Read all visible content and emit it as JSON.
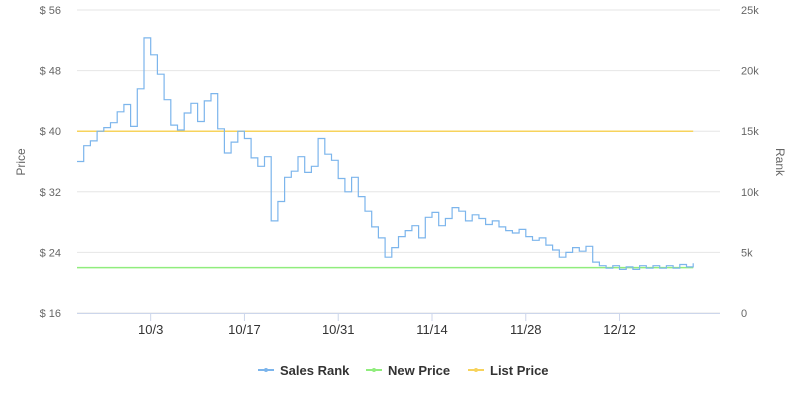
{
  "chart_data": {
    "type": "line",
    "title": "",
    "ylabel_left": "Price",
    "ylabel_right": "Rank",
    "left_axis": {
      "min": 16,
      "max": 56,
      "ticks": [
        "$ 16",
        "$ 24",
        "$ 32",
        "$ 40",
        "$ 48",
        "$ 56"
      ],
      "tick_values": [
        16,
        24,
        32,
        40,
        48,
        56
      ]
    },
    "right_axis": {
      "min": 0,
      "max": 25000,
      "ticks": [
        "0",
        "5k",
        "10k",
        "15k",
        "20k",
        "25k"
      ],
      "tick_values": [
        0,
        5000,
        10000,
        15000,
        20000,
        25000
      ]
    },
    "x_axis": {
      "start": "09-22",
      "end": "12-27",
      "ticks": [
        "10/3",
        "10/17",
        "10/31",
        "11/14",
        "11/28",
        "12/12"
      ],
      "tick_dates": [
        "10-03",
        "10-17",
        "10-31",
        "11-14",
        "11-28",
        "12-12"
      ]
    },
    "grid": true,
    "legend_position": "bottom",
    "series": [
      {
        "name": "Sales Rank",
        "axis": "right",
        "color": "#7cb5ec",
        "points": [
          [
            "09-22",
            12500
          ],
          [
            "09-23",
            13800
          ],
          [
            "09-24",
            14200
          ],
          [
            "09-25",
            15000
          ],
          [
            "09-26",
            15300
          ],
          [
            "09-27",
            15700
          ],
          [
            "09-28",
            16600
          ],
          [
            "09-29",
            17200
          ],
          [
            "09-30",
            15400
          ],
          [
            "10-01",
            18500
          ],
          [
            "10-02",
            22700
          ],
          [
            "10-03",
            21300
          ],
          [
            "10-04",
            19700
          ],
          [
            "10-05",
            17600
          ],
          [
            "10-06",
            15500
          ],
          [
            "10-07",
            15100
          ],
          [
            "10-08",
            16500
          ],
          [
            "10-09",
            17300
          ],
          [
            "10-10",
            15800
          ],
          [
            "10-11",
            17500
          ],
          [
            "10-12",
            18100
          ],
          [
            "10-13",
            15200
          ],
          [
            "10-14",
            13200
          ],
          [
            "10-15",
            14100
          ],
          [
            "10-16",
            15000
          ],
          [
            "10-17",
            14400
          ],
          [
            "10-18",
            12800
          ],
          [
            "10-19",
            12100
          ],
          [
            "10-20",
            12900
          ],
          [
            "10-21",
            7600
          ],
          [
            "10-22",
            9200
          ],
          [
            "10-23",
            11200
          ],
          [
            "10-24",
            11700
          ],
          [
            "10-25",
            12900
          ],
          [
            "10-26",
            11600
          ],
          [
            "10-27",
            12100
          ],
          [
            "10-28",
            14400
          ],
          [
            "10-29",
            13100
          ],
          [
            "10-30",
            12600
          ],
          [
            "10-31",
            11100
          ],
          [
            "11-01",
            10000
          ],
          [
            "11-02",
            11200
          ],
          [
            "11-03",
            9600
          ],
          [
            "11-04",
            8400
          ],
          [
            "11-05",
            7100
          ],
          [
            "11-06",
            6200
          ],
          [
            "11-07",
            4600
          ],
          [
            "11-08",
            5400
          ],
          [
            "11-09",
            6300
          ],
          [
            "11-10",
            6800
          ],
          [
            "11-11",
            7200
          ],
          [
            "11-12",
            6200
          ],
          [
            "11-13",
            7900
          ],
          [
            "11-14",
            8300
          ],
          [
            "11-15",
            7200
          ],
          [
            "11-16",
            7800
          ],
          [
            "11-17",
            8700
          ],
          [
            "11-18",
            8400
          ],
          [
            "11-19",
            7600
          ],
          [
            "11-20",
            8100
          ],
          [
            "11-21",
            7800
          ],
          [
            "11-22",
            7300
          ],
          [
            "11-23",
            7600
          ],
          [
            "11-24",
            7100
          ],
          [
            "11-25",
            6800
          ],
          [
            "11-26",
            6600
          ],
          [
            "11-27",
            6900
          ],
          [
            "11-28",
            6300
          ],
          [
            "11-29",
            6000
          ],
          [
            "11-30",
            6200
          ],
          [
            "12-01",
            5600
          ],
          [
            "12-02",
            5200
          ],
          [
            "12-03",
            4600
          ],
          [
            "12-04",
            5000
          ],
          [
            "12-05",
            5400
          ],
          [
            "12-06",
            5100
          ],
          [
            "12-07",
            5500
          ],
          [
            "12-08",
            4200
          ],
          [
            "12-09",
            3900
          ],
          [
            "12-10",
            3700
          ],
          [
            "12-11",
            3900
          ],
          [
            "12-12",
            3600
          ],
          [
            "12-13",
            3800
          ],
          [
            "12-14",
            3600
          ],
          [
            "12-15",
            3900
          ],
          [
            "12-16",
            3700
          ],
          [
            "12-17",
            3900
          ],
          [
            "12-18",
            3700
          ],
          [
            "12-19",
            3900
          ],
          [
            "12-20",
            3700
          ],
          [
            "12-21",
            4000
          ],
          [
            "12-22",
            3800
          ],
          [
            "12-23",
            4100
          ]
        ]
      },
      {
        "name": "New Price",
        "axis": "left",
        "color": "#90ed7d",
        "points": [
          [
            "09-22",
            22
          ],
          [
            "12-23",
            22
          ]
        ]
      },
      {
        "name": "List Price",
        "axis": "left",
        "color": "#f7d35c",
        "points": [
          [
            "09-22",
            40
          ],
          [
            "12-23",
            40
          ]
        ]
      }
    ]
  }
}
